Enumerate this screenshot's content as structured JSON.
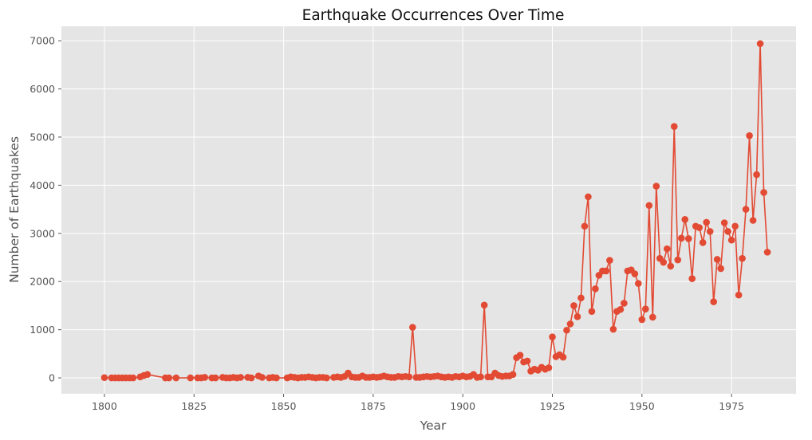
{
  "chart_data": {
    "type": "line",
    "title": "Earthquake Occurrences Over Time",
    "xlabel": "Year",
    "ylabel": "Number of Earthquakes",
    "xlim": [
      1788,
      1993
    ],
    "ylim": [
      -330,
      7300
    ],
    "xticks": [
      1800,
      1825,
      1850,
      1875,
      1900,
      1925,
      1950,
      1975
    ],
    "yticks": [
      0,
      1000,
      2000,
      3000,
      4000,
      5000,
      6000,
      7000
    ],
    "grid": true,
    "legend": "none",
    "colors": {
      "series": "#E24A33",
      "plot_background": "#E5E5E5",
      "grid": "#FFFFFF"
    },
    "series": [
      {
        "marker": "circle",
        "x": [
          1800,
          1802,
          1803,
          1804,
          1805,
          1806,
          1807,
          1808,
          1810,
          1811,
          1812,
          1817,
          1818,
          1820,
          1824,
          1826,
          1827,
          1828,
          1830,
          1831,
          1833,
          1834,
          1835,
          1836,
          1837,
          1838,
          1840,
          1841,
          1843,
          1844,
          1846,
          1847,
          1848,
          1851,
          1852,
          1853,
          1854,
          1855,
          1856,
          1857,
          1858,
          1859,
          1860,
          1861,
          1862,
          1864,
          1865,
          1866,
          1867,
          1868,
          1869,
          1870,
          1871,
          1872,
          1873,
          1874,
          1875,
          1876,
          1877,
          1878,
          1879,
          1880,
          1881,
          1882,
          1883,
          1884,
          1885,
          1886,
          1887,
          1888,
          1889,
          1890,
          1891,
          1892,
          1893,
          1894,
          1895,
          1896,
          1897,
          1898,
          1899,
          1900,
          1901,
          1902,
          1903,
          1904,
          1905,
          1906,
          1907,
          1908,
          1909,
          1910,
          1911,
          1912,
          1913,
          1914,
          1915,
          1916,
          1917,
          1918,
          1919,
          1920,
          1921,
          1922,
          1923,
          1924,
          1925,
          1926,
          1927,
          1928,
          1929,
          1930,
          1931,
          1932,
          1933,
          1934,
          1935,
          1936,
          1937,
          1938,
          1939,
          1940,
          1941,
          1942,
          1943,
          1944,
          1945,
          1946,
          1947,
          1948,
          1949,
          1950,
          1951,
          1952,
          1953,
          1954,
          1955,
          1956,
          1957,
          1958,
          1959,
          1960,
          1961,
          1962,
          1963,
          1964,
          1965,
          1966,
          1967,
          1968,
          1969,
          1970,
          1971,
          1972,
          1973,
          1974,
          1975,
          1976,
          1977,
          1978,
          1979,
          1980,
          1981,
          1982,
          1983,
          1984,
          1985
        ],
        "values": [
          5,
          0,
          0,
          0,
          0,
          0,
          0,
          0,
          20,
          50,
          70,
          0,
          0,
          0,
          0,
          0,
          0,
          10,
          0,
          0,
          10,
          0,
          0,
          10,
          0,
          10,
          10,
          0,
          40,
          10,
          0,
          10,
          0,
          0,
          20,
          10,
          0,
          10,
          10,
          20,
          10,
          0,
          10,
          10,
          0,
          10,
          20,
          10,
          30,
          100,
          20,
          10,
          10,
          40,
          10,
          10,
          20,
          10,
          20,
          40,
          20,
          10,
          10,
          30,
          20,
          30,
          20,
          1050,
          10,
          10,
          20,
          30,
          20,
          30,
          40,
          20,
          10,
          20,
          10,
          30,
          20,
          40,
          20,
          30,
          70,
          10,
          20,
          1510,
          20,
          20,
          100,
          50,
          30,
          40,
          40,
          70,
          420,
          470,
          330,
          350,
          140,
          180,
          160,
          220,
          180,
          210,
          850,
          440,
          480,
          430,
          990,
          1120,
          1500,
          1270,
          1660,
          3150,
          3760,
          1380,
          1850,
          2130,
          2220,
          2220,
          2440,
          1010,
          1380,
          1420,
          1550,
          2220,
          2240,
          2160,
          1960,
          1210,
          1430,
          3580,
          1260,
          3980,
          2480,
          2400,
          2680,
          2320,
          5220,
          2450,
          2900,
          3290,
          2890,
          2060,
          3150,
          3120,
          2810,
          3230,
          3040,
          1580,
          2460,
          2270,
          3220,
          3040,
          2860,
          3150,
          1720,
          2480,
          3500,
          5030,
          3270,
          4220,
          6940,
          3850,
          2610
        ]
      }
    ]
  }
}
